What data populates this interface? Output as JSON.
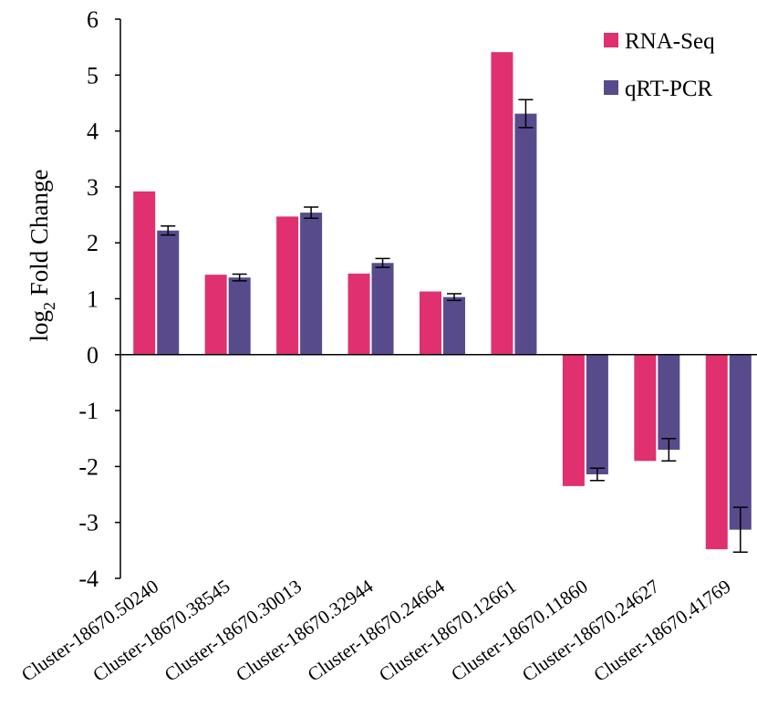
{
  "chart_data": {
    "type": "bar",
    "ylabel_prefix": "log",
    "ylabel_subscript": "2",
    "ylabel_suffix": " Fold Change",
    "ylim": [
      -4,
      6
    ],
    "yticks": [
      "-4",
      "-3",
      "-2",
      "-1",
      "0",
      "1",
      "2",
      "3",
      "4",
      "5",
      "6"
    ],
    "grid": false,
    "legend_position": "top-right",
    "categories": [
      "Cluster-18670.50240",
      "Cluster-18670.38545",
      "Cluster-18670.30013",
      "Cluster-18670.32944",
      "Cluster-18670.24664",
      "Cluster-18670.12661",
      "Cluster-18670.11860",
      "Cluster-18670.24627",
      "Cluster-18670.41769"
    ],
    "series": [
      {
        "name": "RNA-Seq",
        "color": "#e0306f",
        "values": [
          2.92,
          1.43,
          2.47,
          1.45,
          1.13,
          5.41,
          -2.35,
          -1.9,
          -3.48
        ]
      },
      {
        "name": "qRT-PCR",
        "color": "#584b8c",
        "values": [
          2.22,
          1.38,
          2.54,
          1.64,
          1.03,
          4.31,
          -2.14,
          -1.7,
          -3.13
        ],
        "errors": [
          0.08,
          0.06,
          0.1,
          0.08,
          0.06,
          0.25,
          0.11,
          0.2,
          0.4
        ]
      }
    ]
  }
}
